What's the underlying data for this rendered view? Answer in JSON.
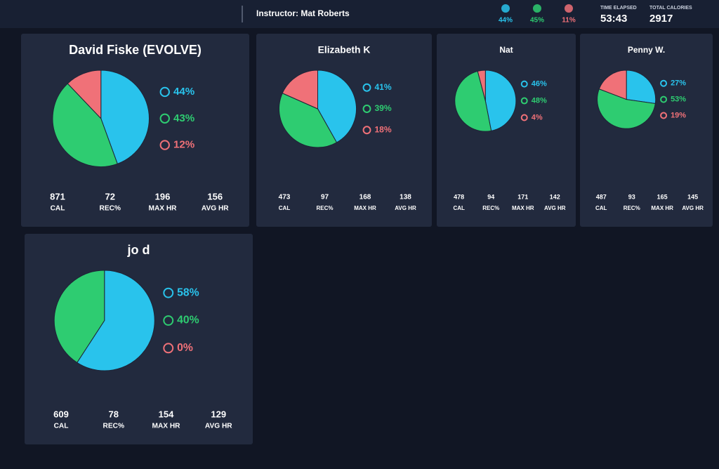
{
  "header": {
    "instructor": "Instructor: Mat Roberts"
  },
  "zone_colors": [
    "#29c3ec",
    "#2ecc71",
    "#f07178"
  ],
  "summary": {
    "zones": {
      "values": [
        44,
        45,
        11
      ],
      "value_labels": [
        "44%",
        "45%",
        "11%"
      ]
    },
    "time_label": "TIME ELAPSED",
    "time": "53:43",
    "calories_label": "TOTAL CALORIES",
    "calories": 2917
  },
  "cards": [
    {
      "name": "David Fiske (EVOLVE)",
      "zones": {
        "values": [
          44,
          43,
          12
        ],
        "value_labels": [
          "44%",
          "43%",
          "12%"
        ]
      },
      "stats": [
        {
          "value": 871,
          "label": "CAL"
        },
        {
          "value": 72,
          "label": "REC%"
        },
        {
          "value": 196,
          "label": "MAX HR"
        },
        {
          "value": 156,
          "label": "AVG HR"
        }
      ]
    },
    {
      "name": "Elizabeth K",
      "zones": {
        "values": [
          41,
          39,
          18
        ],
        "value_labels": [
          "41%",
          "39%",
          "18%"
        ]
      },
      "stats": [
        {
          "value": 473,
          "label": "CAL"
        },
        {
          "value": 97,
          "label": "REC%"
        },
        {
          "value": 168,
          "label": "MAX HR"
        },
        {
          "value": 138,
          "label": "AVG HR"
        }
      ]
    },
    {
      "name": "Nat",
      "zones": {
        "values": [
          46,
          48,
          4
        ],
        "value_labels": [
          "46%",
          "48%",
          "4%"
        ]
      },
      "stats": [
        {
          "value": 478,
          "label": "CAL"
        },
        {
          "value": 94,
          "label": "REC%"
        },
        {
          "value": 171,
          "label": "MAX HR"
        },
        {
          "value": 142,
          "label": "AVG HR"
        }
      ]
    },
    {
      "name": "Penny W.",
      "zones": {
        "values": [
          27,
          53,
          19
        ],
        "value_labels": [
          "27%",
          "53%",
          "19%"
        ]
      },
      "stats": [
        {
          "value": 487,
          "label": "CAL"
        },
        {
          "value": 93,
          "label": "REC%"
        },
        {
          "value": 165,
          "label": "MAX HR"
        },
        {
          "value": 145,
          "label": "AVG HR"
        }
      ]
    },
    {
      "name": "jo d",
      "zones": {
        "values": [
          58,
          40,
          0
        ],
        "value_labels": [
          "58%",
          "40%",
          "0%"
        ]
      },
      "stats": [
        {
          "value": 609,
          "label": "CAL"
        },
        {
          "value": 78,
          "label": "REC%"
        },
        {
          "value": 154,
          "label": "MAX HR"
        },
        {
          "value": 129,
          "label": "AVG HR"
        }
      ]
    }
  ]
}
